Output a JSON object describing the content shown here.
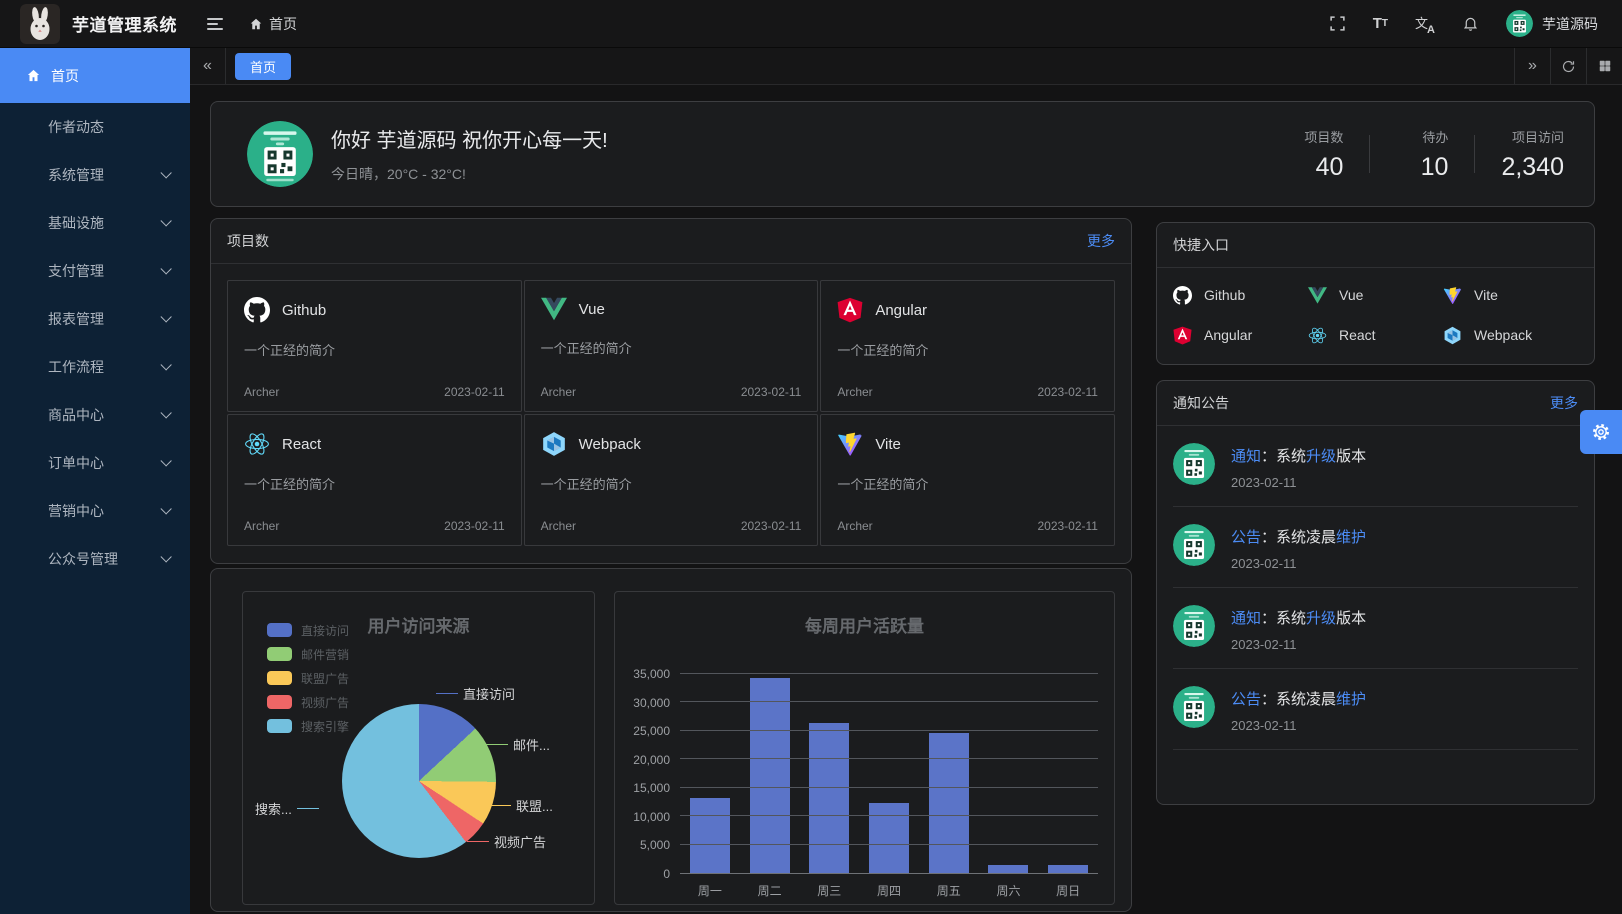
{
  "app": {
    "title": "芋道管理系统",
    "user_name": "芋道源码"
  },
  "topbar": {
    "breadcrumb_home": "首页"
  },
  "tabbar": {
    "active_tab": "首页"
  },
  "sidebar": {
    "items": [
      {
        "label": "首页",
        "active": true
      },
      {
        "label": "作者动态"
      },
      {
        "label": "系统管理",
        "chevron": true
      },
      {
        "label": "基础设施",
        "chevron": true
      },
      {
        "label": "支付管理",
        "chevron": true
      },
      {
        "label": "报表管理",
        "chevron": true
      },
      {
        "label": "工作流程",
        "chevron": true
      },
      {
        "label": "商品中心",
        "chevron": true
      },
      {
        "label": "订单中心",
        "chevron": true
      },
      {
        "label": "营销中心",
        "chevron": true
      },
      {
        "label": "公众号管理",
        "chevron": true
      }
    ]
  },
  "welcome": {
    "greeting": "你好 芋道源码 祝你开心每一天!",
    "weather": "今日晴，20°C - 32°C!",
    "stats": [
      {
        "label": "项目数",
        "value": "40"
      },
      {
        "label": "待办",
        "value": "10"
      },
      {
        "label": "项目访问",
        "value": "2,340"
      }
    ]
  },
  "projects": {
    "title": "项目数",
    "more": "更多",
    "items": [
      {
        "name": "Github",
        "desc": "一个正经的简介",
        "author": "Archer",
        "date": "2023-02-11"
      },
      {
        "name": "Vue",
        "desc": "一个正经的简介",
        "author": "Archer",
        "date": "2023-02-11"
      },
      {
        "name": "Angular",
        "desc": "一个正经的简介",
        "author": "Archer",
        "date": "2023-02-11"
      },
      {
        "name": "React",
        "desc": "一个正经的简介",
        "author": "Archer",
        "date": "2023-02-11"
      },
      {
        "name": "Webpack",
        "desc": "一个正经的简介",
        "author": "Archer",
        "date": "2023-02-11"
      },
      {
        "name": "Vite",
        "desc": "一个正经的简介",
        "author": "Archer",
        "date": "2023-02-11"
      }
    ]
  },
  "quicklinks": {
    "title": "快捷入口",
    "items": [
      {
        "label": "Github"
      },
      {
        "label": "Vue"
      },
      {
        "label": "Vite"
      },
      {
        "label": "Angular"
      },
      {
        "label": "React"
      },
      {
        "label": "Webpack"
      }
    ]
  },
  "notices": {
    "title": "通知公告",
    "more": "更多",
    "items": [
      {
        "tag": "通知",
        "sep": "：",
        "pre": "系统",
        "hl": "升级",
        "post": "版本",
        "date": "2023-02-11"
      },
      {
        "tag": "公告",
        "sep": "：",
        "pre": "系统凌晨",
        "hl": "维护",
        "post": "",
        "date": "2023-02-11"
      },
      {
        "tag": "通知",
        "sep": "：",
        "pre": "系统",
        "hl": "升级",
        "post": "版本",
        "date": "2023-02-11"
      },
      {
        "tag": "公告",
        "sep": "：",
        "pre": "系统凌晨",
        "hl": "维护",
        "post": "",
        "date": "2023-02-11"
      }
    ]
  },
  "chart_data": [
    {
      "type": "pie",
      "title": "用户访问来源",
      "legend_position": "left",
      "labels": [
        "直接访问",
        "邮件营销",
        "联盟广告",
        "视频广告",
        "搜索引擎"
      ],
      "values": [
        335,
        310,
        234,
        135,
        1548
      ],
      "colors": [
        "#5470c6",
        "#91cc75",
        "#fac858",
        "#ee6666",
        "#73c0de"
      ],
      "callouts": [
        "直接访问",
        "邮件...",
        "联盟...",
        "视频广告",
        "搜索..."
      ]
    },
    {
      "type": "bar",
      "title": "每周用户活跃量",
      "categories": [
        "周一",
        "周二",
        "周三",
        "周四",
        "周五",
        "周六",
        "周日"
      ],
      "values": [
        13253,
        34235,
        26321,
        12340,
        24643,
        1322,
        1324
      ],
      "ylim": [
        0,
        35000
      ],
      "yticks": [
        "0",
        "5,000",
        "10,000",
        "15,000",
        "20,000",
        "25,000",
        "30,000",
        "35,000"
      ],
      "bar_color": "#5b74c8",
      "grid": true,
      "legend_position": "none"
    }
  ],
  "colors": {
    "primary": "#4a8af4",
    "link": "#4c8cf5",
    "sidebar_bg": "#0d2135",
    "card_bg": "#1b1c1e"
  }
}
